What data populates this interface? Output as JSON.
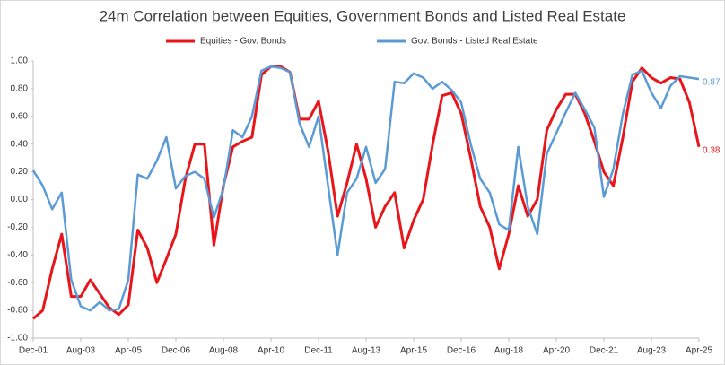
{
  "chart_data": {
    "type": "line",
    "title": "24m Correlation between Equities, Government Bonds  and  Listed Real Estate",
    "categories": [
      "Dec-01",
      null,
      null,
      null,
      null,
      "Aug-03",
      null,
      null,
      null,
      null,
      "Apr-05",
      null,
      null,
      null,
      null,
      "Dec-06",
      null,
      null,
      null,
      null,
      "Aug-08",
      null,
      null,
      null,
      null,
      "Apr-10",
      null,
      null,
      null,
      null,
      "Dec-11",
      null,
      null,
      null,
      null,
      "Aug-13",
      null,
      null,
      null,
      null,
      "Apr-15",
      null,
      null,
      null,
      null,
      "Dec-16",
      null,
      null,
      null,
      null,
      "Aug-18",
      null,
      null,
      null,
      null,
      "Apr-20",
      null,
      null,
      null,
      null,
      "Dec-21",
      null,
      null,
      null,
      null,
      "Aug-23",
      null,
      null,
      null,
      null,
      "Apr-25"
    ],
    "series": [
      {
        "name": "Equities - Gov. Bonds",
        "color": "#e8161b",
        "values": [
          -0.86,
          -0.8,
          -0.5,
          -0.25,
          -0.7,
          -0.7,
          -0.58,
          -0.68,
          -0.78,
          -0.83,
          -0.76,
          -0.22,
          -0.35,
          -0.6,
          -0.43,
          -0.25,
          0.15,
          0.4,
          0.4,
          -0.33,
          0.1,
          0.38,
          0.42,
          0.45,
          0.9,
          0.96,
          0.96,
          0.92,
          0.58,
          0.58,
          0.71,
          0.35,
          -0.12,
          0.12,
          0.4,
          0.15,
          -0.2,
          -0.05,
          0.05,
          -0.35,
          -0.15,
          0.0,
          0.4,
          0.75,
          0.77,
          0.62,
          0.3,
          -0.05,
          -0.2,
          -0.5,
          -0.25,
          0.1,
          -0.12,
          0.0,
          0.5,
          0.65,
          0.76,
          0.76,
          0.62,
          0.42,
          0.2,
          0.1,
          0.45,
          0.85,
          0.95,
          0.88,
          0.84,
          0.88,
          0.87,
          0.7,
          0.38
        ]
      },
      {
        "name": "Gov. Bonds - Listed Real Estate",
        "color": "#5b9bd5",
        "values": [
          0.21,
          0.1,
          -0.07,
          0.05,
          -0.58,
          -0.77,
          -0.8,
          -0.74,
          -0.8,
          -0.79,
          -0.58,
          0.18,
          0.15,
          0.28,
          0.45,
          0.08,
          0.17,
          0.2,
          0.15,
          -0.13,
          0.08,
          0.5,
          0.45,
          0.6,
          0.93,
          0.96,
          0.95,
          0.92,
          0.55,
          0.38,
          0.6,
          0.1,
          -0.4,
          0.05,
          0.15,
          0.38,
          0.12,
          0.22,
          0.85,
          0.84,
          0.91,
          0.88,
          0.8,
          0.85,
          0.79,
          0.7,
          0.4,
          0.15,
          0.05,
          -0.18,
          -0.22,
          0.38,
          -0.05,
          -0.25,
          0.33,
          0.48,
          0.63,
          0.77,
          0.65,
          0.52,
          0.02,
          0.22,
          0.62,
          0.9,
          0.93,
          0.77,
          0.66,
          0.82,
          0.89,
          0.88,
          0.87
        ]
      }
    ],
    "ylim": [
      -1,
      1
    ],
    "yticks": [
      {
        "value": -1,
        "label": "-1.00"
      },
      {
        "value": -0.8,
        "label": "-0.80"
      },
      {
        "value": -0.6,
        "label": "-0.60"
      },
      {
        "value": -0.4,
        "label": "-0.40"
      },
      {
        "value": -0.2,
        "label": "-0.20"
      },
      {
        "value": 0,
        "label": "0.00"
      },
      {
        "value": 0.2,
        "label": "0.20"
      },
      {
        "value": 0.4,
        "label": "0.40"
      },
      {
        "value": 0.6,
        "label": "0.60"
      },
      {
        "value": 0.8,
        "label": "0.80"
      },
      {
        "value": 1,
        "label": "1.00"
      }
    ],
    "grid": false,
    "legend": "top"
  }
}
